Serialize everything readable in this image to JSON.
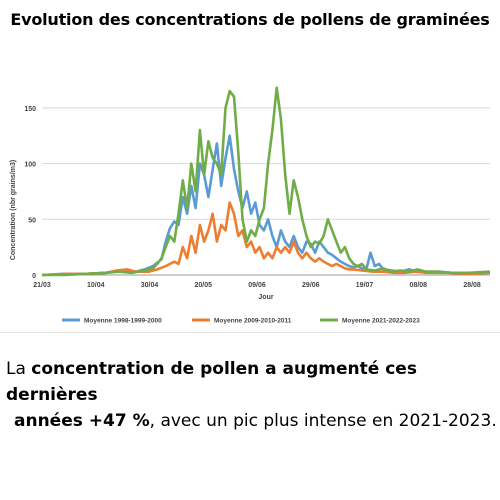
{
  "title": "Evolution des concentrations de pollens de graminées",
  "caption": {
    "p1": "La ",
    "b1": "concentration de pollen a augmenté ces dernières",
    "b2": "années +47 %",
    "p2": ", avec un pic plus intense en 2021-2023."
  },
  "chart_data": {
    "type": "line",
    "ylabel": "Concentration (nbr grains/m3)",
    "xlabel": "Jour",
    "ylim": [
      0,
      175
    ],
    "yticks": [
      0,
      50,
      100,
      150
    ],
    "x_tick_labels": [
      "21/03",
      "10/04",
      "30/04",
      "20/05",
      "09/06",
      "29/06",
      "19/07",
      "08/08",
      "28/08"
    ],
    "grid": "horizontal",
    "legend_position": "bottom",
    "series": [
      {
        "name": "Moyenne 1998-1999-2000",
        "color": "#5b9bd5",
        "points": [
          [
            0,
            0
          ],
          [
            10,
            1
          ],
          [
            20,
            1
          ],
          [
            30,
            2
          ],
          [
            38,
            4
          ],
          [
            44,
            3
          ],
          [
            48,
            5
          ],
          [
            52,
            8
          ],
          [
            56,
            14
          ],
          [
            58,
            30
          ],
          [
            60,
            42
          ],
          [
            62,
            48
          ],
          [
            64,
            45
          ],
          [
            66,
            70
          ],
          [
            68,
            55
          ],
          [
            70,
            80
          ],
          [
            72,
            60
          ],
          [
            74,
            100
          ],
          [
            76,
            90
          ],
          [
            78,
            70
          ],
          [
            80,
            95
          ],
          [
            82,
            118
          ],
          [
            84,
            80
          ],
          [
            86,
            105
          ],
          [
            88,
            125
          ],
          [
            90,
            95
          ],
          [
            92,
            75
          ],
          [
            94,
            60
          ],
          [
            96,
            75
          ],
          [
            98,
            55
          ],
          [
            100,
            65
          ],
          [
            102,
            45
          ],
          [
            104,
            40
          ],
          [
            106,
            50
          ],
          [
            108,
            35
          ],
          [
            110,
            25
          ],
          [
            112,
            40
          ],
          [
            114,
            30
          ],
          [
            116,
            25
          ],
          [
            118,
            35
          ],
          [
            120,
            25
          ],
          [
            122,
            20
          ],
          [
            124,
            30
          ],
          [
            126,
            28
          ],
          [
            128,
            20
          ],
          [
            130,
            30
          ],
          [
            132,
            25
          ],
          [
            134,
            20
          ],
          [
            136,
            18
          ],
          [
            138,
            15
          ],
          [
            140,
            12
          ],
          [
            142,
            10
          ],
          [
            144,
            8
          ],
          [
            146,
            7
          ],
          [
            148,
            8
          ],
          [
            150,
            6
          ],
          [
            152,
            5
          ],
          [
            154,
            20
          ],
          [
            156,
            8
          ],
          [
            158,
            10
          ],
          [
            160,
            5
          ],
          [
            164,
            4
          ],
          [
            168,
            3
          ],
          [
            172,
            5
          ],
          [
            176,
            3
          ],
          [
            180,
            3
          ],
          [
            186,
            3
          ],
          [
            192,
            2
          ],
          [
            200,
            2
          ],
          [
            210,
            2
          ]
        ]
      },
      {
        "name": "Moyenne 2009-2010-2011",
        "color": "#ed7d31",
        "points": [
          [
            0,
            0
          ],
          [
            10,
            1
          ],
          [
            20,
            1
          ],
          [
            30,
            2
          ],
          [
            35,
            4
          ],
          [
            40,
            5
          ],
          [
            44,
            3
          ],
          [
            50,
            3
          ],
          [
            54,
            5
          ],
          [
            58,
            8
          ],
          [
            60,
            10
          ],
          [
            62,
            12
          ],
          [
            64,
            10
          ],
          [
            66,
            25
          ],
          [
            68,
            15
          ],
          [
            70,
            35
          ],
          [
            72,
            20
          ],
          [
            74,
            45
          ],
          [
            76,
            30
          ],
          [
            78,
            40
          ],
          [
            80,
            55
          ],
          [
            82,
            30
          ],
          [
            84,
            45
          ],
          [
            86,
            40
          ],
          [
            88,
            65
          ],
          [
            90,
            55
          ],
          [
            92,
            35
          ],
          [
            94,
            40
          ],
          [
            96,
            25
          ],
          [
            98,
            30
          ],
          [
            100,
            20
          ],
          [
            102,
            25
          ],
          [
            104,
            15
          ],
          [
            106,
            20
          ],
          [
            108,
            15
          ],
          [
            110,
            25
          ],
          [
            112,
            20
          ],
          [
            114,
            25
          ],
          [
            116,
            20
          ],
          [
            118,
            30
          ],
          [
            120,
            20
          ],
          [
            122,
            15
          ],
          [
            124,
            20
          ],
          [
            126,
            15
          ],
          [
            128,
            12
          ],
          [
            130,
            15
          ],
          [
            132,
            12
          ],
          [
            134,
            10
          ],
          [
            136,
            8
          ],
          [
            138,
            10
          ],
          [
            140,
            8
          ],
          [
            142,
            6
          ],
          [
            144,
            5
          ],
          [
            146,
            5
          ],
          [
            150,
            4
          ],
          [
            155,
            3
          ],
          [
            160,
            3
          ],
          [
            165,
            2
          ],
          [
            170,
            2
          ],
          [
            175,
            3
          ],
          [
            180,
            2
          ],
          [
            190,
            2
          ],
          [
            200,
            1
          ],
          [
            210,
            2
          ]
        ]
      },
      {
        "name": "Moyenne 2021-2022-2023",
        "color": "#70ad47",
        "points": [
          [
            0,
            0
          ],
          [
            10,
            0
          ],
          [
            20,
            1
          ],
          [
            30,
            2
          ],
          [
            36,
            3
          ],
          [
            42,
            2
          ],
          [
            48,
            4
          ],
          [
            52,
            6
          ],
          [
            54,
            10
          ],
          [
            56,
            15
          ],
          [
            58,
            25
          ],
          [
            60,
            35
          ],
          [
            62,
            30
          ],
          [
            64,
            55
          ],
          [
            66,
            85
          ],
          [
            68,
            60
          ],
          [
            70,
            100
          ],
          [
            72,
            75
          ],
          [
            74,
            130
          ],
          [
            76,
            90
          ],
          [
            78,
            120
          ],
          [
            80,
            105
          ],
          [
            82,
            100
          ],
          [
            84,
            90
          ],
          [
            86,
            150
          ],
          [
            88,
            165
          ],
          [
            90,
            160
          ],
          [
            92,
            110
          ],
          [
            94,
            50
          ],
          [
            96,
            30
          ],
          [
            98,
            40
          ],
          [
            100,
            35
          ],
          [
            102,
            50
          ],
          [
            104,
            60
          ],
          [
            106,
            100
          ],
          [
            108,
            130
          ],
          [
            110,
            168
          ],
          [
            112,
            140
          ],
          [
            114,
            90
          ],
          [
            116,
            55
          ],
          [
            118,
            85
          ],
          [
            120,
            70
          ],
          [
            122,
            50
          ],
          [
            124,
            35
          ],
          [
            126,
            25
          ],
          [
            128,
            30
          ],
          [
            130,
            28
          ],
          [
            132,
            35
          ],
          [
            134,
            50
          ],
          [
            136,
            40
          ],
          [
            138,
            30
          ],
          [
            140,
            20
          ],
          [
            142,
            25
          ],
          [
            144,
            15
          ],
          [
            146,
            10
          ],
          [
            148,
            8
          ],
          [
            150,
            10
          ],
          [
            152,
            5
          ],
          [
            156,
            4
          ],
          [
            160,
            6
          ],
          [
            164,
            3
          ],
          [
            168,
            4
          ],
          [
            172,
            3
          ],
          [
            176,
            5
          ],
          [
            180,
            3
          ],
          [
            186,
            3
          ],
          [
            192,
            2
          ],
          [
            200,
            2
          ],
          [
            210,
            3
          ]
        ]
      }
    ]
  }
}
